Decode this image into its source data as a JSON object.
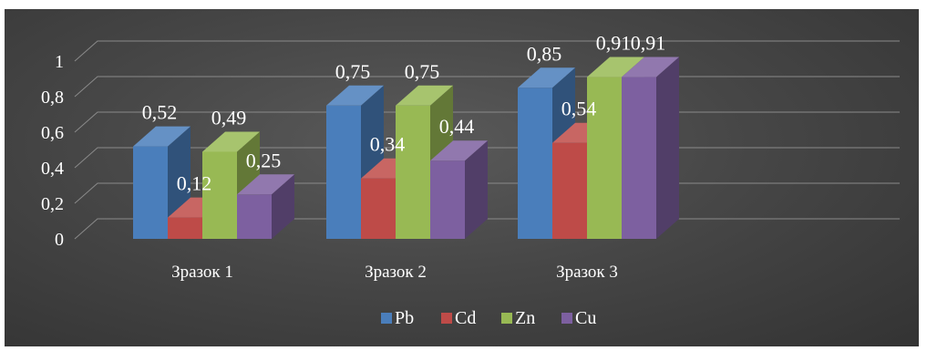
{
  "chart_data": {
    "type": "bar",
    "style": "3d-clustered-column",
    "categories": [
      "Зразок 1",
      "Зразок 2",
      "Зразок 3"
    ],
    "series": [
      {
        "name": "Pb",
        "values": [
          0.52,
          0.75,
          0.85
        ],
        "labels": [
          "0,52",
          "0,75",
          "0,85"
        ],
        "color": "#4a7ebb"
      },
      {
        "name": "Cd",
        "values": [
          0.12,
          0.34,
          0.54
        ],
        "labels": [
          "0,12",
          "0,34",
          "0,54"
        ],
        "color": "#be4b48"
      },
      {
        "name": "Zn",
        "values": [
          0.49,
          0.75,
          0.91
        ],
        "labels": [
          "0,49",
          "0,75",
          "0,91"
        ],
        "color": "#98b954"
      },
      {
        "name": "Cu",
        "values": [
          0.25,
          0.44,
          0.91
        ],
        "labels": [
          "0,25",
          "0,44",
          "0,91"
        ],
        "color": "#7d60a0"
      }
    ],
    "yticks": [
      "0",
      "0,2",
      "0,4",
      "0,6",
      "0,8",
      "1"
    ],
    "ylim": [
      0,
      1
    ],
    "grid": true,
    "legend_position": "bottom",
    "background": "#474747",
    "title": "",
    "xlabel": "",
    "ylabel": ""
  }
}
